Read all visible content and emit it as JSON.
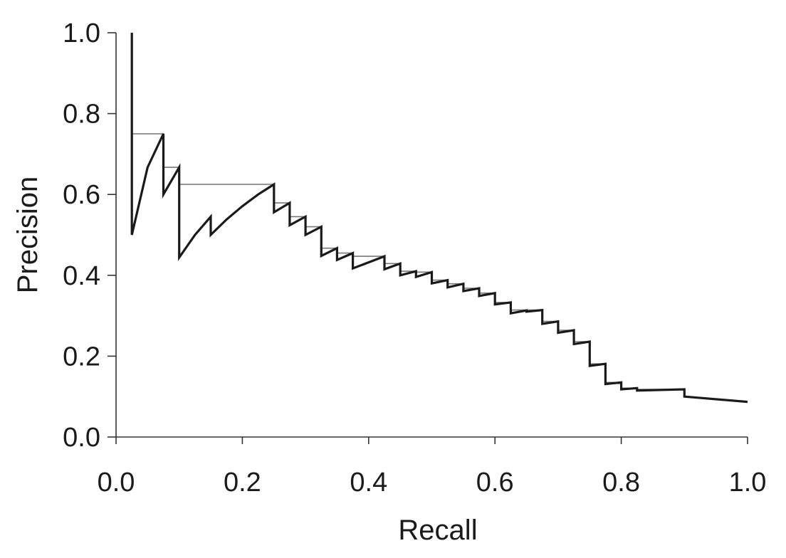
{
  "chart_data": {
    "type": "line",
    "title": "",
    "xlabel": "Recall",
    "ylabel": "Precision",
    "xlim": [
      0,
      1
    ],
    "ylim": [
      0,
      1
    ],
    "grid": false,
    "legend": "none",
    "x_ticks": [
      "0.0",
      "0.2",
      "0.4",
      "0.6",
      "0.8",
      "1.0"
    ],
    "y_ticks": [
      "0.0",
      "0.2",
      "0.4",
      "0.6",
      "0.8",
      "1.0"
    ],
    "series": [
      {
        "color": "#1a1a1a",
        "style": "thick",
        "x": [
          0.025,
          0.025,
          0.05,
          0.075,
          0.075,
          0.1,
          0.1,
          0.125,
          0.15,
          0.15,
          0.175,
          0.2,
          0.225,
          0.25,
          0.25,
          0.275,
          0.275,
          0.3,
          0.3,
          0.325,
          0.325,
          0.35,
          0.35,
          0.375,
          0.375,
          0.425,
          0.425,
          0.45,
          0.45,
          0.475,
          0.475,
          0.5,
          0.5,
          0.525,
          0.525,
          0.55,
          0.55,
          0.575,
          0.575,
          0.6,
          0.6,
          0.625,
          0.625,
          0.65,
          0.65,
          0.675,
          0.675,
          0.7,
          0.7,
          0.725,
          0.725,
          0.75,
          0.75,
          0.775,
          0.775,
          0.8,
          0.8,
          0.825,
          0.825,
          0.9,
          0.9,
          1.0
        ],
        "y": [
          1.0,
          0.5,
          0.667,
          0.75,
          0.6,
          0.667,
          0.444,
          0.5,
          0.545,
          0.5,
          0.538,
          0.571,
          0.6,
          0.625,
          0.556,
          0.579,
          0.524,
          0.545,
          0.5,
          0.52,
          0.448,
          0.467,
          0.438,
          0.455,
          0.417,
          0.447,
          0.415,
          0.429,
          0.4,
          0.41,
          0.396,
          0.408,
          0.38,
          0.388,
          0.37,
          0.379,
          0.361,
          0.368,
          0.349,
          0.356,
          0.328,
          0.333,
          0.306,
          0.313,
          0.31,
          0.314,
          0.28,
          0.286,
          0.258,
          0.264,
          0.23,
          0.236,
          0.176,
          0.181,
          0.131,
          0.135,
          0.118,
          0.121,
          0.115,
          0.118,
          0.1,
          0.087
        ]
      },
      {
        "color": "#777777",
        "style": "thin",
        "x": [
          0.025,
          0.025,
          0.075,
          0.075,
          0.1,
          0.1,
          0.25,
          0.25,
          0.275,
          0.275,
          0.3,
          0.3,
          0.325,
          0.325,
          0.35,
          0.35,
          0.375,
          0.375,
          0.425,
          0.425,
          0.45,
          0.45,
          0.475,
          0.475,
          0.5,
          0.5,
          0.525,
          0.525,
          0.55,
          0.55,
          0.575,
          0.575,
          0.6,
          0.6,
          0.625,
          0.625,
          0.675,
          0.675,
          0.7,
          0.7,
          0.725,
          0.725,
          0.75,
          0.75,
          0.775,
          0.775,
          0.8,
          0.8,
          0.825,
          0.825,
          0.9,
          0.9,
          1.0
        ],
        "y": [
          1.0,
          0.75,
          0.75,
          0.667,
          0.667,
          0.625,
          0.625,
          0.579,
          0.579,
          0.545,
          0.545,
          0.52,
          0.52,
          0.467,
          0.467,
          0.455,
          0.455,
          0.447,
          0.447,
          0.429,
          0.429,
          0.41,
          0.41,
          0.408,
          0.408,
          0.388,
          0.388,
          0.379,
          0.379,
          0.368,
          0.368,
          0.356,
          0.356,
          0.333,
          0.333,
          0.314,
          0.314,
          0.286,
          0.286,
          0.264,
          0.264,
          0.236,
          0.236,
          0.181,
          0.181,
          0.135,
          0.135,
          0.121,
          0.121,
          0.118,
          0.118,
          0.1,
          0.087
        ]
      }
    ]
  }
}
